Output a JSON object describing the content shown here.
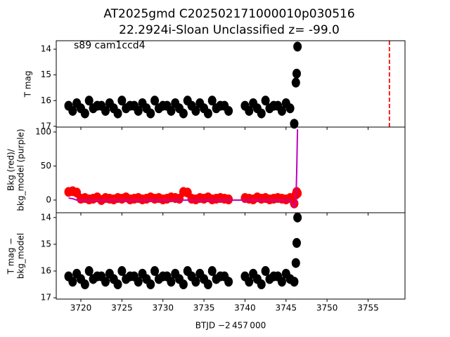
{
  "chart_data": [
    {
      "type": "scatter",
      "title": "AT2025gmd  C202502171000010p030516",
      "subtitle": "22.2924i-Sloan Unclassified z= -99.0",
      "annotation": "s89 cam1ccd4",
      "ylabel": [
        "T mag"
      ],
      "xlim": [
        3717,
        3759.5
      ],
      "ylim": [
        17.03,
        13.67
      ],
      "yticks": [
        14,
        15,
        16,
        17
      ],
      "vline": {
        "x": 3757.6,
        "color": "#ff0000"
      },
      "x": [
        3718.5,
        3719,
        3719.5,
        3720,
        3720.5,
        3721,
        3721.5,
        3722,
        3722.5,
        3723,
        3723.5,
        3724,
        3724.5,
        3725,
        3725.5,
        3726,
        3726.5,
        3727,
        3727.5,
        3728,
        3728.5,
        3729,
        3729.5,
        3730,
        3730.5,
        3731,
        3731.5,
        3732,
        3732.5,
        3733,
        3733.5,
        3734,
        3734.5,
        3735,
        3735.5,
        3736,
        3736.5,
        3737,
        3737.5,
        3738,
        3740,
        3740.5,
        3741,
        3741.5,
        3742,
        3742.5,
        3743,
        3743.5,
        3744,
        3744.5,
        3745,
        3745.5,
        3746,
        3746.2,
        3746.3,
        3746.4
      ],
      "series": [
        {
          "color": "#000000",
          "values": [
            16.2,
            16.4,
            16.1,
            16.3,
            16.5,
            16.0,
            16.3,
            16.2,
            16.2,
            16.4,
            16.1,
            16.3,
            16.5,
            16.0,
            16.3,
            16.2,
            16.2,
            16.4,
            16.1,
            16.3,
            16.5,
            16.0,
            16.3,
            16.2,
            16.2,
            16.4,
            16.1,
            16.3,
            16.5,
            16.0,
            16.2,
            16.4,
            16.1,
            16.3,
            16.5,
            16.0,
            16.3,
            16.2,
            16.2,
            16.4,
            16.2,
            16.4,
            16.1,
            16.3,
            16.5,
            16.0,
            16.3,
            16.2,
            16.2,
            16.4,
            16.1,
            16.3,
            16.9,
            15.3,
            14.95,
            13.9
          ]
        }
      ]
    },
    {
      "type": "scatter",
      "ylabel": [
        "Bkg (red)/",
        "bkg_model (purple)"
      ],
      "xlim": [
        3717,
        3759.5
      ],
      "ylim": [
        -18.6,
        107.2
      ],
      "yticks": [
        0,
        50,
        100
      ],
      "x": [
        3718.5,
        3719,
        3719.5,
        3720,
        3720.5,
        3721,
        3721.5,
        3722,
        3722.5,
        3723,
        3723.5,
        3724,
        3724.5,
        3725,
        3725.5,
        3726,
        3726.5,
        3727,
        3727.5,
        3728,
        3728.5,
        3729,
        3729.5,
        3730,
        3730.5,
        3731,
        3731.5,
        3732,
        3732.5,
        3733,
        3733.5,
        3734,
        3734.5,
        3735,
        3735.5,
        3736,
        3736.5,
        3737,
        3737.5,
        3738,
        3740,
        3740.5,
        3741,
        3741.5,
        3742,
        3742.5,
        3743,
        3743.5,
        3744,
        3744.5,
        3745,
        3745.5,
        3746,
        3746.2,
        3746.3,
        3746.4
      ],
      "series": [
        {
          "color": "#ff0000",
          "values": [
            12,
            13,
            11,
            2,
            3,
            1,
            2,
            4,
            0,
            3,
            2,
            1,
            3,
            2,
            4,
            1,
            2,
            3,
            1,
            2,
            4,
            2,
            3,
            1,
            2,
            4,
            3,
            2,
            12,
            11,
            2,
            1,
            3,
            2,
            4,
            1,
            2,
            3,
            2,
            1,
            3,
            2,
            1,
            4,
            2,
            3,
            1,
            2,
            3,
            2,
            1,
            3,
            -5,
            8,
            12,
            10
          ]
        },
        {
          "color": "#bf00bf",
          "type": "line",
          "values": [
            3,
            2,
            0,
            0,
            0,
            0,
            0,
            0,
            0,
            0,
            0,
            0,
            0,
            0,
            0,
            0,
            0,
            0,
            0,
            0,
            0,
            0,
            0,
            0,
            0,
            0,
            0,
            0,
            0,
            0,
            0,
            0,
            0,
            0,
            0,
            0,
            0,
            0,
            0,
            0,
            0,
            0,
            0,
            0,
            0,
            0,
            0,
            0,
            0,
            0,
            0,
            0,
            -10,
            -5,
            40,
            104
          ]
        }
      ]
    },
    {
      "type": "scatter",
      "ylabel": [
        "T mag −",
        "bkg_model"
      ],
      "xlabel": "BTJD −2 457 000",
      "xlim": [
        3717,
        3759.5
      ],
      "ylim": [
        17.05,
        13.82
      ],
      "yticks": [
        14,
        15,
        16,
        17
      ],
      "xticks": [
        3720,
        3725,
        3730,
        3735,
        3740,
        3745,
        3750,
        3755
      ],
      "x": [
        3718.5,
        3719,
        3719.5,
        3720,
        3720.5,
        3721,
        3721.5,
        3722,
        3722.5,
        3723,
        3723.5,
        3724,
        3724.5,
        3725,
        3725.5,
        3726,
        3726.5,
        3727,
        3727.5,
        3728,
        3728.5,
        3729,
        3729.5,
        3730,
        3730.5,
        3731,
        3731.5,
        3732,
        3732.5,
        3733,
        3733.5,
        3734,
        3734.5,
        3735,
        3735.5,
        3736,
        3736.5,
        3737,
        3737.5,
        3738,
        3740,
        3740.5,
        3741,
        3741.5,
        3742,
        3742.5,
        3743,
        3743.5,
        3744,
        3744.5,
        3745,
        3745.5,
        3746,
        3746.2,
        3746.3,
        3746.4
      ],
      "series": [
        {
          "color": "#000000",
          "values": [
            16.2,
            16.4,
            16.1,
            16.3,
            16.5,
            16.0,
            16.3,
            16.2,
            16.2,
            16.4,
            16.1,
            16.3,
            16.5,
            16.0,
            16.3,
            16.2,
            16.2,
            16.4,
            16.1,
            16.3,
            16.5,
            16.0,
            16.3,
            16.2,
            16.2,
            16.4,
            16.1,
            16.3,
            16.5,
            16.0,
            16.2,
            16.4,
            16.1,
            16.3,
            16.5,
            16.0,
            16.3,
            16.2,
            16.2,
            16.4,
            16.2,
            16.4,
            16.1,
            16.3,
            16.5,
            16.0,
            16.3,
            16.2,
            16.2,
            16.4,
            16.1,
            16.3,
            16.4,
            15.7,
            14.95,
            14.0
          ]
        }
      ]
    }
  ]
}
